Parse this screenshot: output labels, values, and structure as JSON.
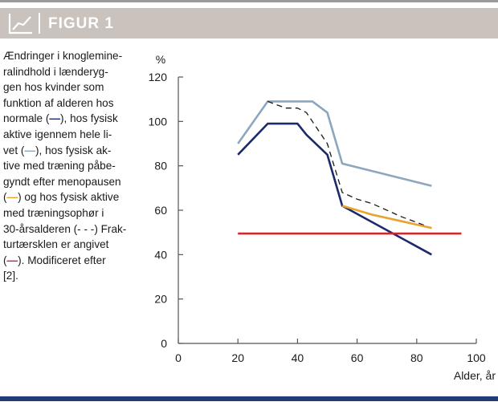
{
  "header": {
    "title": "FIGUR 1",
    "icon": "line-chart-icon"
  },
  "caption": {
    "lines": [
      "Ændringer i knoglemine-",
      "ralindhold i lænderyg-",
      "gen hos kvinder som",
      "funktion af alderen hos",
      "normale (—), hos fysisk",
      "aktive igennem hele li-",
      "vet (—), hos fysisk ak-",
      "tive med træning påbe-",
      "gyndt efter menopausen",
      "(—) og hos fysisk aktive",
      "med træningsophør i",
      "30-årsalderen (- - -) Frak-",
      "turtærsklen er angivet",
      "(—). Modificeret efter",
      "[2]."
    ]
  },
  "colors": {
    "normal": "#1a2a6c",
    "lifelong_active": "#8aa7bf",
    "postmenopause_training": "#e8a230",
    "training_stopped": "#1a1a1a",
    "fracture_threshold": "#d1282e",
    "header_bg": "#c9c2bd",
    "bottom_bar": "#1f3c74"
  },
  "chart_data": {
    "type": "line",
    "ylabel": "%",
    "xlabel": "Alder, år",
    "xlim": [
      0,
      100
    ],
    "ylim": [
      0,
      120
    ],
    "xticks": [
      0,
      20,
      40,
      60,
      80,
      100
    ],
    "yticks": [
      0,
      20,
      40,
      60,
      80,
      100,
      120
    ],
    "grid": false,
    "series": [
      {
        "key": "lifelong_active",
        "style": "solid",
        "x": [
          20,
          30,
          40,
          45,
          50,
          55,
          85
        ],
        "y": [
          90,
          109,
          109,
          109,
          104,
          81,
          71
        ]
      },
      {
        "key": "training_stopped",
        "style": "dashed",
        "x": [
          30,
          36,
          40,
          43,
          50,
          55,
          60,
          65,
          75,
          85
        ],
        "y": [
          109,
          106,
          106,
          104,
          90,
          68,
          65,
          63,
          57,
          52
        ]
      },
      {
        "key": "normal",
        "style": "solid",
        "x": [
          20,
          30,
          40,
          43,
          50,
          55,
          85
        ],
        "y": [
          85,
          99,
          99,
          94,
          85,
          62,
          40
        ]
      },
      {
        "key": "postmenopause_training",
        "style": "solid",
        "x": [
          55,
          65,
          75,
          85
        ],
        "y": [
          62,
          58,
          55,
          52
        ]
      },
      {
        "key": "fracture_threshold",
        "style": "solid",
        "x": [
          20,
          95
        ],
        "y": [
          49.5,
          49.5
        ]
      }
    ]
  }
}
